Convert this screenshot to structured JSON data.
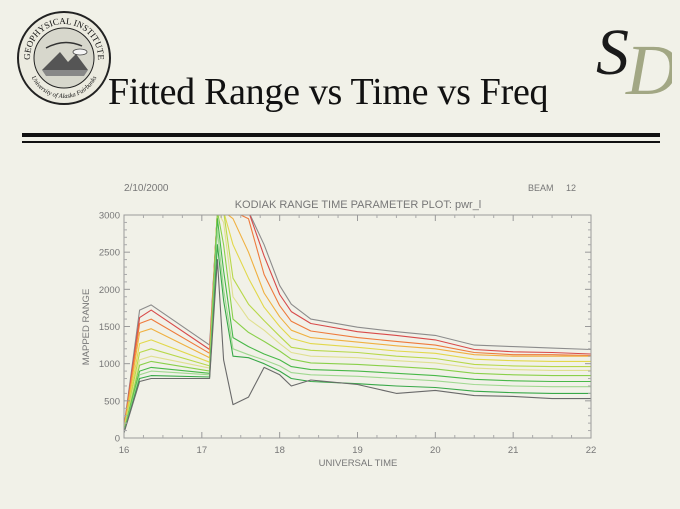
{
  "slide": {
    "title": "Fitted Range vs Time vs Freq",
    "logo_text_top": "GEOPHYSICAL INSTITUTE",
    "logo_text_bottom": "University of Alaska Fairbanks",
    "corner_logo": "SD"
  },
  "chart_data": {
    "type": "line",
    "date": "2/10/2000",
    "beam_label": "BEAM",
    "beam_value": "12",
    "title": "KODIAK RANGE TIME PARAMETER PLOT: pwr_l",
    "xlabel": "UNIVERSAL TIME",
    "ylabel": "MAPPED RANGE",
    "xlim": [
      16,
      22
    ],
    "ylim": [
      0,
      3000
    ],
    "xticks": [
      16,
      17,
      18,
      19,
      20,
      21,
      22
    ],
    "yticks": [
      0,
      500,
      1000,
      1500,
      2000,
      2500,
      3000
    ],
    "x": [
      16.0,
      16.2,
      16.35,
      17.1,
      17.2,
      17.28,
      17.4,
      17.6,
      17.8,
      18.0,
      18.15,
      18.4,
      19.0,
      19.5,
      20.0,
      20.5,
      21.0,
      21.5,
      22.0
    ],
    "series": [
      {
        "color": "#8c8c8c",
        "values": [
          150,
          1720,
          1790,
          1250,
          3050,
          3050,
          3050,
          3050,
          2600,
          2050,
          1800,
          1600,
          1490,
          1430,
          1380,
          1250,
          1230,
          1210,
          1190
        ]
      },
      {
        "color": "#d84a4a",
        "values": [
          140,
          1620,
          1720,
          1190,
          3050,
          3050,
          3050,
          3050,
          2450,
          1930,
          1700,
          1540,
          1430,
          1380,
          1320,
          1190,
          1160,
          1150,
          1130
        ]
      },
      {
        "color": "#ee7a3c",
        "values": [
          130,
          1540,
          1600,
          1140,
          3050,
          3050,
          3050,
          2950,
          2200,
          1780,
          1570,
          1440,
          1350,
          1300,
          1250,
          1150,
          1120,
          1120,
          1110
        ]
      },
      {
        "color": "#f0b040",
        "values": [
          120,
          1420,
          1470,
          1080,
          3050,
          3050,
          2950,
          2500,
          1950,
          1630,
          1450,
          1350,
          1290,
          1240,
          1200,
          1120,
          1100,
          1100,
          1100
        ]
      },
      {
        "color": "#e2d84a",
        "values": [
          110,
          1270,
          1320,
          1020,
          3050,
          3050,
          2600,
          2150,
          1760,
          1500,
          1340,
          1270,
          1220,
          1170,
          1140,
          1060,
          1040,
          1030,
          1030
        ]
      },
      {
        "color": "#b8d84a",
        "values": [
          100,
          1150,
          1200,
          970,
          3050,
          3050,
          2150,
          1800,
          1580,
          1370,
          1220,
          1180,
          1150,
          1100,
          1070,
          990,
          970,
          960,
          960
        ]
      },
      {
        "color": "#e0e090",
        "values": [
          95,
          1050,
          1100,
          940,
          3050,
          2900,
          1900,
          1600,
          1450,
          1270,
          1150,
          1100,
          1080,
          1040,
          1010,
          940,
          920,
          910,
          910
        ]
      },
      {
        "color": "#8ad04a",
        "values": [
          90,
          980,
          1030,
          900,
          3050,
          2600,
          1600,
          1420,
          1300,
          1170,
          1060,
          1010,
          990,
          960,
          930,
          870,
          850,
          840,
          840
        ]
      },
      {
        "color": "#48b848",
        "values": [
          85,
          900,
          950,
          870,
          2950,
          2250,
          1350,
          1230,
          1130,
          1050,
          960,
          920,
          900,
          870,
          840,
          790,
          770,
          760,
          760
        ]
      },
      {
        "color": "#a0d890",
        "values": [
          80,
          850,
          900,
          850,
          2800,
          2000,
          1200,
          1120,
          1050,
          970,
          880,
          850,
          830,
          800,
          770,
          720,
          700,
          690,
          690
        ]
      },
      {
        "color": "#38a848",
        "values": [
          75,
          800,
          840,
          820,
          2600,
          1850,
          1100,
          1080,
          1000,
          900,
          800,
          760,
          730,
          700,
          680,
          630,
          610,
          600,
          600
        ]
      },
      {
        "color": "#6a6a6a",
        "values": [
          70,
          760,
          800,
          800,
          2400,
          1050,
          450,
          550,
          950,
          850,
          700,
          780,
          720,
          600,
          640,
          570,
          560,
          530,
          530
        ]
      }
    ]
  }
}
